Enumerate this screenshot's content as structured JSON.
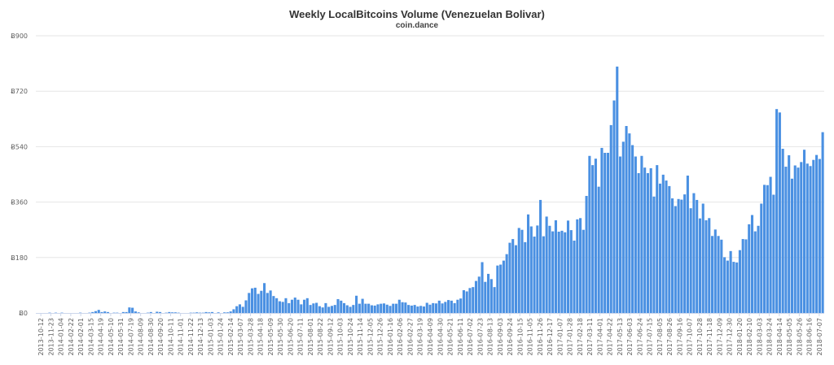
{
  "chart_data": {
    "type": "bar",
    "title": "Weekly LocalBitcoins Volume (Venezuelan Bolivar)",
    "subtitle": "coin.dance",
    "xlabel": "",
    "ylabel": "",
    "ylim": [
      0,
      900
    ],
    "yticks": [
      0,
      180,
      360,
      540,
      720,
      900
    ],
    "ytick_labels": [
      "Ƀ0",
      "Ƀ180",
      "Ƀ360",
      "Ƀ540",
      "Ƀ720",
      "Ƀ900"
    ],
    "grid": "horizontal",
    "legend": "none",
    "bar_color": "#4a90e2",
    "x_labels": [
      "2013-10-12",
      "2013-11-23",
      "2014-01-04",
      "2014-02-22",
      "2014-02-01",
      "2014-03-15",
      "2014-04-19",
      "2014-05-10",
      "2014-05-31",
      "2014-07-19",
      "2014-08-09",
      "2014-08-30",
      "2014-09-20",
      "2014-10-11",
      "2014-11-01",
      "2014-11-22",
      "2014-12-13",
      "2015-01-03",
      "2015-01-24",
      "2015-02-14",
      "2015-03-07",
      "2015-03-28",
      "2015-04-18",
      "2015-05-09",
      "2015-05-30",
      "2015-06-20",
      "2015-07-11",
      "2015-08-01",
      "2015-08-22",
      "2015-09-12",
      "2015-10-03",
      "2015-10-24",
      "2015-11-14",
      "2015-12-05",
      "2015-12-26",
      "2016-01-16",
      "2016-02-06",
      "2016-02-27",
      "2016-03-19",
      "2016-04-09",
      "2016-04-30",
      "2016-05-21",
      "2016-06-11",
      "2016-07-02",
      "2016-07-23",
      "2016-08-13",
      "2016-09-03",
      "2016-09-24",
      "2016-10-15",
      "2016-11-05",
      "2016-11-26",
      "2016-12-17",
      "2017-01-07",
      "2017-01-28",
      "2017-02-18",
      "2017-03-11",
      "2017-04-01",
      "2017-04-22",
      "2017-05-13",
      "2017-06-03",
      "2017-06-24",
      "2017-07-15",
      "2017-08-05",
      "2017-08-26",
      "2017-09-16",
      "2017-10-07",
      "2017-10-28",
      "2017-11-18",
      "2017-12-09",
      "2017-12-30",
      "2018-01-20",
      "2018-02-10",
      "2018-03-03",
      "2018-03-24",
      "2018-04-14",
      "2018-05-05",
      "2018-05-26",
      "2018-06-16",
      "2018-07-07"
    ],
    "values": [
      0,
      0,
      0,
      0,
      1,
      0,
      1,
      0,
      1,
      0,
      0,
      0,
      0,
      0,
      1,
      0,
      0,
      1,
      3,
      6,
      10,
      3,
      5,
      3,
      0,
      1,
      1,
      0,
      3,
      3,
      18,
      17,
      5,
      2,
      0,
      0,
      1,
      3,
      0,
      4,
      3,
      0,
      1,
      3,
      2,
      2,
      1,
      0,
      0,
      0,
      1,
      1,
      2,
      1,
      1,
      3,
      2,
      3,
      0,
      2,
      0,
      2,
      2,
      5,
      12,
      22,
      28,
      20,
      41,
      65,
      80,
      82,
      62,
      72,
      97,
      65,
      73,
      55,
      48,
      38,
      36,
      48,
      32,
      43,
      50,
      43,
      28,
      43,
      48,
      26,
      31,
      33,
      22,
      18,
      32,
      20,
      23,
      26,
      45,
      40,
      32,
      25,
      20,
      26,
      56,
      30,
      46,
      30,
      30,
      25,
      24,
      28,
      30,
      31,
      27,
      23,
      30,
      30,
      43,
      35,
      34,
      26,
      24,
      26,
      21,
      23,
      21,
      33,
      27,
      32,
      31,
      40,
      31,
      36,
      42,
      40,
      32,
      43,
      47,
      74,
      70,
      81,
      84,
      104,
      118,
      165,
      101,
      127,
      110,
      84,
      154,
      157,
      170,
      191,
      228,
      240,
      220,
      276,
      270,
      230,
      320,
      281,
      248,
      284,
      367,
      249,
      313,
      283,
      265,
      301,
      264,
      267,
      262,
      300,
      269,
      235,
      304,
      308,
      270,
      380,
      510,
      480,
      501,
      410,
      536,
      520,
      520,
      610,
      690,
      800,
      508,
      556,
      607,
      583,
      545,
      508,
      454,
      510,
      472,
      454,
      470,
      378,
      480,
      420,
      449,
      430,
      412,
      372,
      347,
      370,
      368,
      385,
      446,
      340,
      389,
      367,
      307,
      355,
      301,
      308,
      250,
      271,
      250,
      238,
      181,
      170,
      201,
      166,
      164,
      204,
      240,
      239,
      288,
      318,
      265,
      283,
      355,
      416,
      415,
      442,
      384,
      662,
      651,
      533,
      475,
      512,
      436,
      479,
      472,
      490,
      530,
      485,
      477,
      497,
      513,
      500,
      587
    ]
  }
}
